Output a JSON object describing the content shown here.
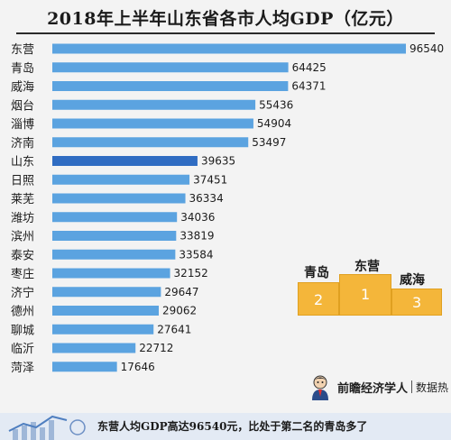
{
  "title": "2018年上半年山东省各市人均GDP（亿元）",
  "colors": {
    "bar": "#5ba3e0",
    "bar_highlight": "#2f6cc2",
    "podium": "#f4b63a"
  },
  "chart_data": {
    "type": "bar",
    "orientation": "horizontal",
    "title": "2018年上半年山东省各市人均GDP（亿元）",
    "categories": [
      "东营",
      "青岛",
      "威海",
      "烟台",
      "淄博",
      "济南",
      "山东",
      "日照",
      "莱芜",
      "潍坊",
      "滨州",
      "泰安",
      "枣庄",
      "济宁",
      "德州",
      "聊城",
      "临沂",
      "菏泽"
    ],
    "values": [
      96540,
      64425,
      64371,
      55436,
      54904,
      53497,
      39635,
      37451,
      36334,
      34036,
      33819,
      33584,
      32152,
      29647,
      29062,
      27641,
      22712,
      17646
    ],
    "highlight": [
      "山东"
    ],
    "xlim": [
      0,
      96540
    ],
    "grid": false,
    "legend": "none"
  },
  "podium": {
    "first": {
      "name": "东营",
      "rank": "1"
    },
    "second": {
      "name": "青岛",
      "rank": "2"
    },
    "third": {
      "name": "威海",
      "rank": "3"
    }
  },
  "brand": {
    "name": "前瞻经济学人",
    "tag": "数据热",
    "avatar_icon": "economist-avatar-icon"
  },
  "footer": {
    "text": "东营人均GDP高达96540元，比处于第二名的青岛多了"
  }
}
